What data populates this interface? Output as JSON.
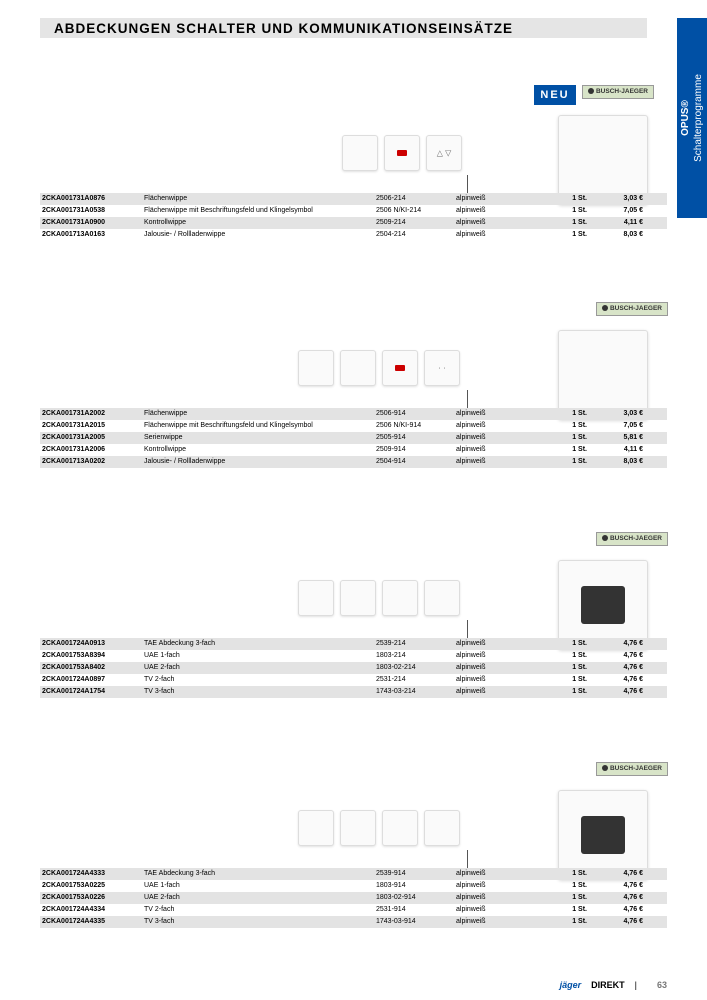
{
  "page": {
    "title": "ABDECKUNGEN SCHALTER UND KOMMUNIKATIONSEINSÄTZE",
    "side_tab_top": "OPUS®",
    "side_tab_bottom": "Schalterprogramme",
    "neu": "NEU",
    "brand": "BUSCH-JAEGER",
    "footer_brand": "jäger",
    "footer_direkt": "DIREKT",
    "footer_sep": "|",
    "page_number": "63"
  },
  "colors": {
    "side_tab": "#0050a5",
    "neu_bg": "#0050a5",
    "stripe": "#e3e3e3",
    "brand_bg": "#d8e4c8"
  },
  "sections": [
    {
      "rows": [
        {
          "art": "2CKA001731A0876",
          "desc": "Flächenwippe",
          "code": "2506-214",
          "color": "alpinweiß",
          "unit": "1 St.",
          "price": "3,03 €"
        },
        {
          "art": "2CKA001731A0538",
          "desc": "Flächenwippe mit Beschriftungsfeld und Klingelsymbol",
          "code": "2506 N/KI-214",
          "color": "alpinweiß",
          "unit": "1 St.",
          "price": "7,05 €"
        },
        {
          "art": "2CKA001731A0900",
          "desc": "Kontrollwippe",
          "code": "2509-214",
          "color": "alpinweiß",
          "unit": "1 St.",
          "price": "4,11 €"
        },
        {
          "art": "2CKA001713A0163",
          "desc": "Jalousie- / Rollladenwippe",
          "code": "2504-214",
          "color": "alpinweiß",
          "unit": "1 St.",
          "price": "8,03 €"
        }
      ]
    },
    {
      "rows": [
        {
          "art": "2CKA001731A2002",
          "desc": "Flächenwippe",
          "code": "2506-914",
          "color": "alpinweiß",
          "unit": "1 St.",
          "price": "3,03 €"
        },
        {
          "art": "2CKA001731A2015",
          "desc": "Flächenwippe mit Beschriftungsfeld und Klingelsymbol",
          "code": "2506 N/KI-914",
          "color": "alpinweiß",
          "unit": "1 St.",
          "price": "7,05 €"
        },
        {
          "art": "2CKA001731A2005",
          "desc": "Serienwippe",
          "code": "2505-914",
          "color": "alpinweiß",
          "unit": "1 St.",
          "price": "5,81 €"
        },
        {
          "art": "2CKA001731A2006",
          "desc": "Kontrollwippe",
          "code": "2509-914",
          "color": "alpinweiß",
          "unit": "1 St.",
          "price": "4,11 €"
        },
        {
          "art": "2CKA001713A0202",
          "desc": "Jalousie- / Rollladenwippe",
          "code": "2504-914",
          "color": "alpinweiß",
          "unit": "1 St.",
          "price": "8,03 €"
        }
      ]
    },
    {
      "rows": [
        {
          "art": "2CKA001724A0913",
          "desc": "TAE Abdeckung 3-fach",
          "code": "2539-214",
          "color": "alpinweiß",
          "unit": "1 St.",
          "price": "4,76 €"
        },
        {
          "art": "2CKA001753A8394",
          "desc": "UAE 1-fach",
          "code": "1803-214",
          "color": "alpinweiß",
          "unit": "1 St.",
          "price": "4,76 €"
        },
        {
          "art": "2CKA001753A8402",
          "desc": "UAE 2-fach",
          "code": "1803-02-214",
          "color": "alpinweiß",
          "unit": "1 St.",
          "price": "4,76 €"
        },
        {
          "art": "2CKA001724A0897",
          "desc": "TV 2-fach",
          "code": "2531-214",
          "color": "alpinweiß",
          "unit": "1 St.",
          "price": "4,76 €"
        },
        {
          "art": "2CKA001724A1754",
          "desc": "TV 3-fach",
          "code": "1743-03-214",
          "color": "alpinweiß",
          "unit": "1 St.",
          "price": "4,76 €"
        }
      ]
    },
    {
      "rows": [
        {
          "art": "2CKA001724A4333",
          "desc": "TAE Abdeckung 3-fach",
          "code": "2539-914",
          "color": "alpinweiß",
          "unit": "1 St.",
          "price": "4,76 €"
        },
        {
          "art": "2CKA001753A0225",
          "desc": "UAE 1-fach",
          "code": "1803-914",
          "color": "alpinweiß",
          "unit": "1 St.",
          "price": "4,76 €"
        },
        {
          "art": "2CKA001753A0226",
          "desc": "UAE 2-fach",
          "code": "1803-02-914",
          "color": "alpinweiß",
          "unit": "1 St.",
          "price": "4,76 €"
        },
        {
          "art": "2CKA001724A4334",
          "desc": "TV 2-fach",
          "code": "2531-914",
          "color": "alpinweiß",
          "unit": "1 St.",
          "price": "4,76 €"
        },
        {
          "art": "2CKA001724A4335",
          "desc": "TV 3-fach",
          "code": "1743-03-914",
          "color": "alpinweiß",
          "unit": "1 St.",
          "price": "4,76 €"
        }
      ]
    }
  ]
}
